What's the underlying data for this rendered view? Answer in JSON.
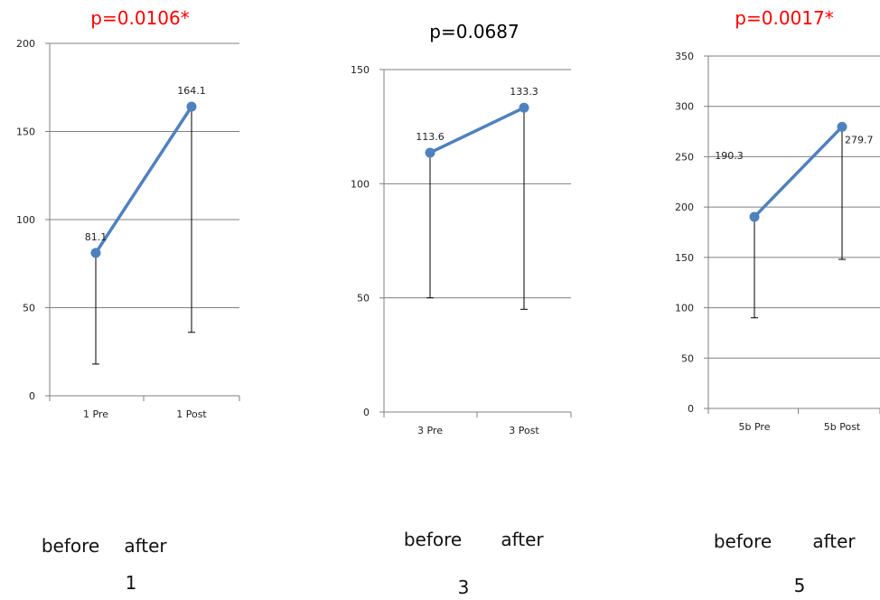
{
  "colors": {
    "line": "#4f81bd",
    "significant_title": "#ff0000",
    "normal_title": "#000000",
    "grid": "#7f7f7f",
    "errorbar": "#000000"
  },
  "chart_data": [
    {
      "type": "line",
      "title": "p=0.0106*",
      "title_significant": true,
      "categories": [
        "1 Pre",
        "1 Post"
      ],
      "values": [
        81.1,
        164.1
      ],
      "data_labels": [
        "81.1",
        "164.1"
      ],
      "error_low": [
        18,
        36
      ],
      "ylim": [
        0,
        200
      ],
      "yticks": [
        0,
        50,
        100,
        150,
        200
      ],
      "grid": true,
      "caption_conditions": [
        "before",
        "after"
      ],
      "caption_number": "1"
    },
    {
      "type": "line",
      "title": "p=0.0687",
      "title_significant": false,
      "categories": [
        "3 Pre",
        "3 Post"
      ],
      "values": [
        113.6,
        133.3
      ],
      "data_labels": [
        "113.6",
        "133.3"
      ],
      "error_low": [
        50,
        45
      ],
      "ylim": [
        0,
        150
      ],
      "yticks": [
        0,
        50,
        100,
        150
      ],
      "grid": true,
      "caption_conditions": [
        "before",
        "after"
      ],
      "caption_number": "3"
    },
    {
      "type": "line",
      "title": "p=0.0017*",
      "title_significant": true,
      "categories": [
        "5b Pre",
        "5b Post"
      ],
      "values": [
        190.3,
        279.7
      ],
      "data_labels": [
        "190.3",
        "279.7"
      ],
      "error_low": [
        90,
        148
      ],
      "ylim": [
        0,
        350
      ],
      "yticks": [
        0,
        50,
        100,
        150,
        200,
        250,
        300,
        350
      ],
      "grid": true,
      "caption_conditions": [
        "before",
        "after"
      ],
      "caption_number": "5"
    }
  ]
}
